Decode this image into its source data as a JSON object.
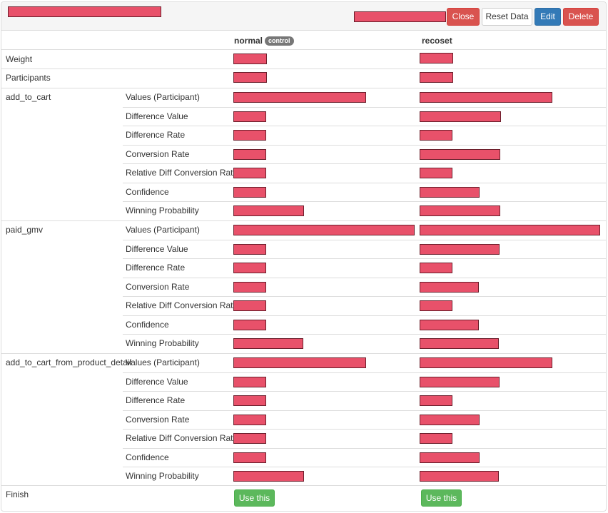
{
  "header": {
    "close_label": "Close",
    "reset_label": "Reset Data",
    "edit_label": "Edit",
    "delete_label": "Delete"
  },
  "colors": {
    "redaction": "#e8516a",
    "danger": "#d9534f",
    "primary": "#337ab7",
    "success": "#5cb85c"
  },
  "table": {
    "columns": {
      "variant_a": "normal",
      "variant_a_badge": "control",
      "variant_b": "recoset"
    },
    "rows": {
      "weight": "Weight",
      "participants": "Participants",
      "finish": "Finish"
    },
    "metrics": [
      "add_to_cart",
      "paid_gmv",
      "add_to_cart_from_product_detail"
    ],
    "submetrics": [
      "Values (Participant)",
      "Difference Value",
      "Difference Rate",
      "Conversion Rate",
      "Relative Diff Conversion Rate",
      "Confidence",
      "Winning Probability"
    ],
    "use_this_label": "Use this"
  }
}
